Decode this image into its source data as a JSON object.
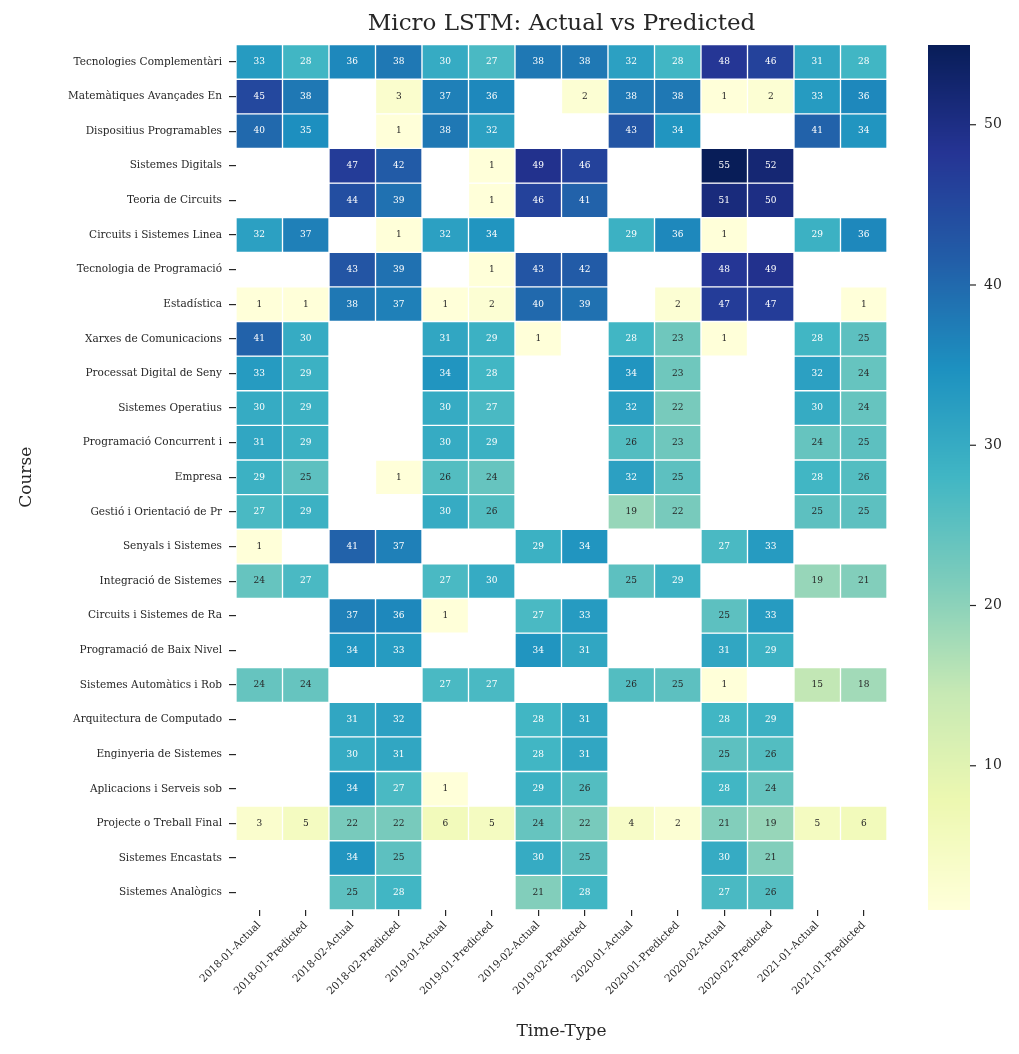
{
  "chart_data": {
    "type": "heatmap",
    "title": "Micro LSTM: Actual vs Predicted",
    "xlabel": "Time-Type",
    "ylabel": "Course",
    "categories": [
      "2018-01-Actual",
      "2018-01-Predicted",
      "2018-02-Actual",
      "2018-02-Predicted",
      "2019-01-Actual",
      "2019-01-Predicted",
      "2019-02-Actual",
      "2019-02-Predicted",
      "2020-01-Actual",
      "2020-01-Predicted",
      "2020-02-Actual",
      "2020-02-Predicted",
      "2021-01-Actual",
      "2021-01-Predicted"
    ],
    "y_categories": [
      "Tecnologies Complementàri",
      "Matemàtiques Avançades En",
      "Dispositius Programables",
      "Sistemes Digitals",
      "Teoria de Circuits",
      "Circuits i Sistemes Linea",
      "Tecnologia de Programació",
      "Estadística",
      "Xarxes de Comunicacions",
      "Processat Digital de Seny",
      "Sistemes Operatius",
      "Programació Concurrent i",
      "Empresa",
      "Gestió i Orientació de Pr",
      "Senyals i Sistemes",
      "Integració de Sistemes",
      "Circuits i Sistemes de Ra",
      "Programació de Baix Nivel",
      "Sistemes Automàtics i Rob",
      "Arquitectura de Computado",
      "Enginyeria de Sistemes",
      "Aplicacions i Serveis sob",
      "Projecte o Treball Final",
      "Sistemes Encastats",
      "Sistemes Analògics"
    ],
    "cells": [
      [
        33,
        28,
        36,
        38,
        30,
        27,
        38,
        38,
        32,
        28,
        48,
        46,
        31,
        28
      ],
      [
        45,
        38,
        null,
        3,
        37,
        36,
        null,
        2,
        38,
        38,
        1,
        2,
        33,
        36
      ],
      [
        40,
        35,
        null,
        1,
        38,
        32,
        null,
        null,
        43,
        34,
        null,
        null,
        41,
        34
      ],
      [
        null,
        null,
        47,
        42,
        null,
        1,
        49,
        46,
        null,
        null,
        55,
        52,
        null,
        null
      ],
      [
        null,
        null,
        44,
        39,
        null,
        1,
        46,
        41,
        null,
        null,
        51,
        50,
        null,
        null
      ],
      [
        32,
        37,
        null,
        1,
        32,
        34,
        null,
        null,
        29,
        36,
        1,
        null,
        29,
        36
      ],
      [
        null,
        null,
        43,
        39,
        null,
        1,
        43,
        42,
        null,
        null,
        48,
        49,
        null,
        null
      ],
      [
        1,
        1,
        38,
        37,
        1,
        2,
        40,
        39,
        null,
        2,
        47,
        47,
        null,
        1
      ],
      [
        41,
        30,
        null,
        null,
        31,
        29,
        1,
        null,
        28,
        23,
        1,
        null,
        28,
        25
      ],
      [
        33,
        29,
        null,
        null,
        34,
        28,
        null,
        null,
        34,
        23,
        null,
        null,
        32,
        24
      ],
      [
        30,
        29,
        null,
        null,
        30,
        27,
        null,
        null,
        32,
        22,
        null,
        null,
        30,
        24
      ],
      [
        31,
        29,
        null,
        null,
        30,
        29,
        null,
        null,
        26,
        23,
        null,
        null,
        24,
        25
      ],
      [
        29,
        25,
        null,
        1,
        26,
        24,
        null,
        null,
        32,
        25,
        null,
        null,
        28,
        26
      ],
      [
        27,
        29,
        null,
        null,
        30,
        26,
        null,
        null,
        19,
        22,
        null,
        null,
        25,
        25
      ],
      [
        1,
        null,
        41,
        37,
        null,
        null,
        29,
        34,
        null,
        null,
        27,
        33,
        null,
        null
      ],
      [
        24,
        27,
        null,
        null,
        27,
        30,
        null,
        null,
        25,
        29,
        null,
        null,
        19,
        21
      ],
      [
        null,
        null,
        37,
        36,
        1,
        null,
        27,
        33,
        null,
        null,
        25,
        33,
        null,
        null
      ],
      [
        null,
        null,
        34,
        33,
        null,
        null,
        34,
        31,
        null,
        null,
        31,
        29,
        null,
        null
      ],
      [
        24,
        24,
        null,
        null,
        27,
        27,
        null,
        null,
        26,
        25,
        1,
        null,
        15,
        18
      ],
      [
        null,
        null,
        31,
        32,
        null,
        null,
        28,
        31,
        null,
        null,
        28,
        29,
        null,
        null
      ],
      [
        null,
        null,
        30,
        31,
        null,
        null,
        28,
        31,
        null,
        null,
        25,
        26,
        null,
        null
      ],
      [
        null,
        null,
        34,
        27,
        1,
        null,
        29,
        26,
        null,
        null,
        28,
        24,
        null,
        null
      ],
      [
        3,
        5,
        22,
        22,
        6,
        5,
        24,
        22,
        4,
        2,
        21,
        19,
        5,
        6
      ],
      [
        null,
        null,
        34,
        25,
        null,
        null,
        30,
        25,
        null,
        null,
        30,
        21,
        null,
        null
      ],
      [
        null,
        null,
        25,
        28,
        null,
        null,
        21,
        28,
        null,
        null,
        27,
        26,
        null,
        null
      ]
    ],
    "clim": [
      1,
      55
    ],
    "cticks": [
      10,
      20,
      30,
      40,
      50
    ],
    "data_labels": true
  }
}
